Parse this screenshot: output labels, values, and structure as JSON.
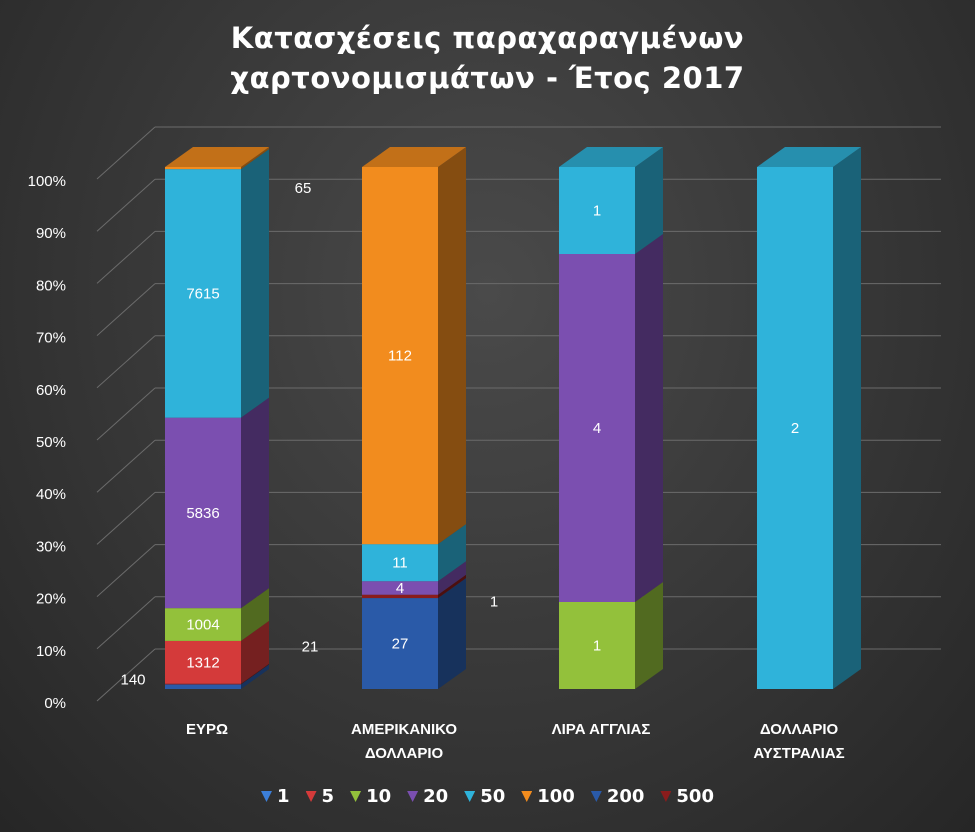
{
  "chart_data": {
    "type": "bar",
    "stacked": "percent",
    "three_d": true,
    "title_lines": [
      "Κατασχέσεις παραχαραγμένων",
      "χαρτονομισμάτων - Έτος 2017"
    ],
    "categories": [
      [
        "ΕΥΡΩ"
      ],
      [
        "ΑΜΕΡΙΚΑΝΙΚΟ",
        "ΔΟΛΛΑΡΙΟ"
      ],
      [
        "ΛΙΡΑ ΑΓΓΛΙΑΣ"
      ],
      [
        "ΔΟΛΛΑΡΙΟ",
        "ΑΥΣΤΡΑΛΙΑΣ"
      ]
    ],
    "y_ticks": [
      "0%",
      "10%",
      "20%",
      "30%",
      "40%",
      "50%",
      "60%",
      "70%",
      "80%",
      "90%",
      "100%"
    ],
    "ylim": [
      0,
      100
    ],
    "grid": true,
    "legend_position": "bottom",
    "series": [
      {
        "name": "1",
        "color": "#3c7fd9",
        "values": [
          0,
          0,
          0,
          0
        ]
      },
      {
        "name": "5",
        "color": "#d43a3a",
        "values": [
          1312,
          0,
          0,
          0
        ]
      },
      {
        "name": "10",
        "color": "#93c13b",
        "values": [
          1004,
          0,
          1,
          0
        ]
      },
      {
        "name": "20",
        "color": "#7b4fb0",
        "values": [
          5836,
          4,
          4,
          0
        ]
      },
      {
        "name": "50",
        "color": "#2fb3da",
        "values": [
          7615,
          11,
          1,
          2
        ]
      },
      {
        "name": "100",
        "color": "#f28c1e",
        "values": [
          65,
          112,
          0,
          0
        ]
      },
      {
        "name": "200",
        "color": "#2a5aa8",
        "values": [
          140,
          27,
          0,
          0
        ]
      },
      {
        "name": "500",
        "color": "#8a1c1c",
        "values": [
          21,
          1,
          0,
          0
        ]
      }
    ],
    "stack_order": [
      "200",
      "500",
      "5",
      "10",
      "20",
      "50",
      "100",
      "1"
    ],
    "data_labels": [
      {
        "cat": 0,
        "text": "1312",
        "series": "5"
      },
      {
        "cat": 0,
        "text": "1004",
        "series": "10"
      },
      {
        "cat": 0,
        "text": "5836",
        "series": "20"
      },
      {
        "cat": 0,
        "text": "7615",
        "series": "50"
      },
      {
        "cat": 0,
        "text": "65",
        "series": "100"
      },
      {
        "cat": 0,
        "text": "140",
        "series": "200"
      },
      {
        "cat": 0,
        "text": "21",
        "series": "500"
      },
      {
        "cat": 1,
        "text": "27",
        "series": "200"
      },
      {
        "cat": 1,
        "text": "1",
        "series": "500"
      },
      {
        "cat": 1,
        "text": "4",
        "series": "20"
      },
      {
        "cat": 1,
        "text": "11",
        "series": "50"
      },
      {
        "cat": 1,
        "text": "112",
        "series": "100"
      },
      {
        "cat": 2,
        "text": "1",
        "series": "10"
      },
      {
        "cat": 2,
        "text": "4",
        "series": "20"
      },
      {
        "cat": 2,
        "text": "1",
        "series": "50"
      },
      {
        "cat": 3,
        "text": "2",
        "series": "50"
      }
    ]
  }
}
